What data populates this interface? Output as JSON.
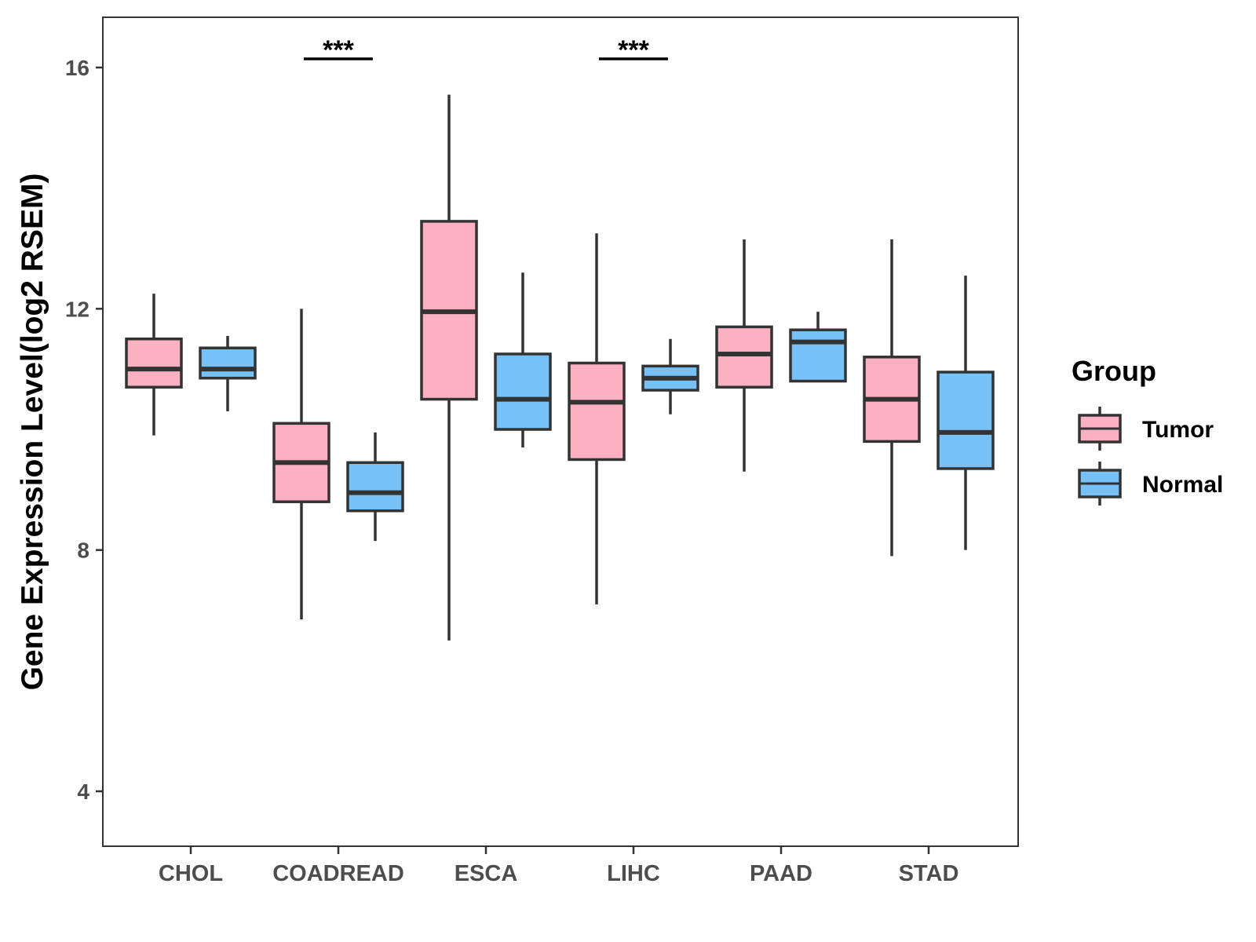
{
  "chart_data": {
    "type": "boxplot",
    "ylabel": "Gene Expression Level(log2 RSEM)",
    "xlabel": "",
    "ylim": [
      3.0,
      16.8
    ],
    "yticks": [
      4,
      8,
      12,
      16
    ],
    "grid": false,
    "categories": [
      "CHOL",
      "COADREAD",
      "ESCA",
      "LIHC",
      "PAAD",
      "STAD"
    ],
    "legend": {
      "title": "Group",
      "position": "right",
      "entries": [
        {
          "name": "Tumor",
          "color": "#FBB1C2"
        },
        {
          "name": "Normal",
          "color": "#76C1F8"
        }
      ]
    },
    "series": [
      {
        "name": "Tumor",
        "color": "#FBB1C2",
        "boxes": [
          {
            "category": "CHOL",
            "min": 9.9,
            "q1": 10.7,
            "median": 11.0,
            "q3": 11.5,
            "max": 12.25
          },
          {
            "category": "COADREAD",
            "min": 6.85,
            "q1": 8.8,
            "median": 9.45,
            "q3": 10.1,
            "max": 12.0
          },
          {
            "category": "ESCA",
            "min": 6.5,
            "q1": 10.5,
            "median": 11.95,
            "q3": 13.45,
            "max": 15.55
          },
          {
            "category": "LIHC",
            "min": 7.1,
            "q1": 9.5,
            "median": 10.45,
            "q3": 11.1,
            "max": 13.25
          },
          {
            "category": "PAAD",
            "min": 9.3,
            "q1": 10.7,
            "median": 11.25,
            "q3": 11.7,
            "max": 13.15
          },
          {
            "category": "STAD",
            "min": 7.9,
            "q1": 9.8,
            "median": 10.5,
            "q3": 11.2,
            "max": 13.15
          }
        ]
      },
      {
        "name": "Normal",
        "color": "#76C1F8",
        "boxes": [
          {
            "category": "CHOL",
            "min": 10.3,
            "q1": 10.85,
            "median": 11.0,
            "q3": 11.35,
            "max": 11.55
          },
          {
            "category": "COADREAD",
            "min": 8.15,
            "q1": 8.65,
            "median": 8.95,
            "q3": 9.45,
            "max": 9.95
          },
          {
            "category": "ESCA",
            "min": 9.7,
            "q1": 10.0,
            "median": 10.5,
            "q3": 11.25,
            "max": 12.6
          },
          {
            "category": "LIHC",
            "min": 10.25,
            "q1": 10.65,
            "median": 10.85,
            "q3": 11.05,
            "max": 11.5
          },
          {
            "category": "PAAD",
            "min": 10.8,
            "q1": 10.8,
            "median": 11.45,
            "q3": 11.65,
            "max": 11.95
          },
          {
            "category": "STAD",
            "min": 8.0,
            "q1": 9.35,
            "median": 9.95,
            "q3": 10.95,
            "max": 12.55
          }
        ]
      }
    ],
    "annotations": [
      {
        "category": "COADREAD",
        "label": "***"
      },
      {
        "category": "LIHC",
        "label": "***"
      }
    ]
  }
}
